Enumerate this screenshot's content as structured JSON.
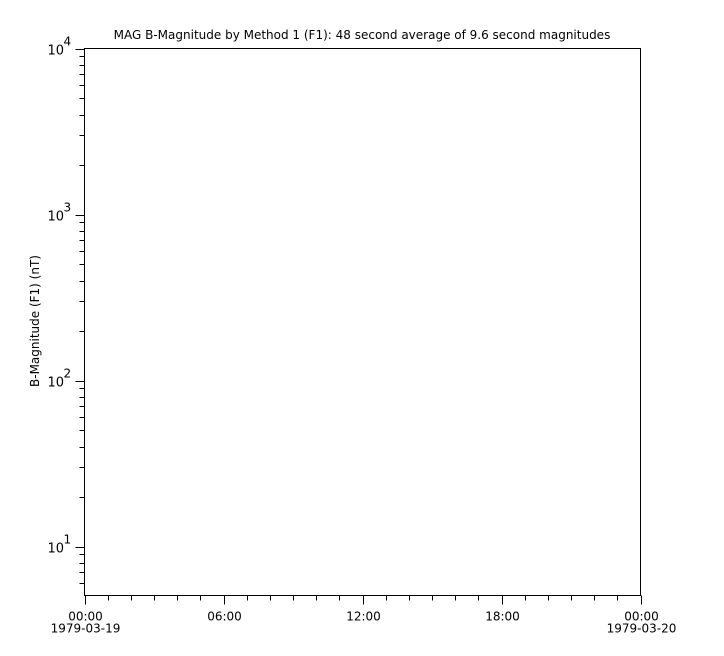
{
  "chart_data": {
    "type": "line",
    "title": "MAG  B-Magnitude by Method 1 (F1): 48 second average of 9.6 second magnitudes",
    "ylabel": "B-Magnitude (F1) (nT)",
    "xlabel": "",
    "yscale": "log",
    "ylim": [
      5.07,
      10000
    ],
    "xlim": [
      "1979-03-19 00:00",
      "1979-03-20 00:00"
    ],
    "y_ticks": [
      {
        "base": "10",
        "exp": "1",
        "value": 10
      },
      {
        "base": "10",
        "exp": "2",
        "value": 100
      },
      {
        "base": "10",
        "exp": "3",
        "value": 1000
      },
      {
        "base": "10",
        "exp": "4",
        "value": 10000
      }
    ],
    "x_ticks": [
      {
        "time": "00:00",
        "date": "1979-03-19",
        "hours": 0
      },
      {
        "time": "06:00",
        "date": "",
        "hours": 6
      },
      {
        "time": "12:00",
        "date": "",
        "hours": 12
      },
      {
        "time": "18:00",
        "date": "",
        "hours": 18
      },
      {
        "time": "00:00",
        "date": "1979-03-20",
        "hours": 24
      }
    ],
    "x_minor_tick_hours": 1,
    "grid": false,
    "series": [],
    "colors": {
      "axis": "#000000",
      "background": "#ffffff"
    }
  }
}
